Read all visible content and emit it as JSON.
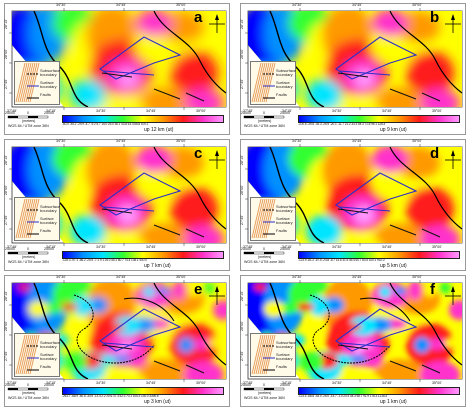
{
  "panels": [
    {
      "letter": "a",
      "ticks": "-60.0 -45.2 -29.9 -4.7 -9.2 5.7 15.0 25.0 36.1 43.8 53.4 66.8 100.1",
      "caption": "up 12 km (ut)"
    },
    {
      "letter": "b",
      "ticks": "-100.6 -39.6 -34.3 -26.9 -20.1 -11.7 21.2 33.3 54.3 71.8 95.1 128.4",
      "caption": "up 9 km (ut)"
    },
    {
      "letter": "c",
      "ticks": "-125.3 -97.1 -56.2 -25.9 -7.1 9.1 25.0 45.1 60.7 74.4 135.1 400.0",
      "caption": "up 7 km (ut)"
    },
    {
      "letter": "d",
      "ticks": "-123.9 -81.2 -57.5 -24.8 -6.7 14.6 31.5 45.4 60.7 83.5 100.1 910.0",
      "caption": "up 5 km (ut)"
    },
    {
      "letter": "e",
      "ticks": "-261.7 -88.9 -60.8 -34.9 -13.4 2.2 20.6 37.3 52.3 70.1 105.3 130.0 3396.6",
      "caption": "up 3 km (ut)"
    },
    {
      "letter": "f",
      "ticks": "-123.4 -68.8 -44.0 -26.0 -14.7 -1.0 20.4 44.3 58.7 91.9 176.3 1216.4",
      "caption": "up 1 km (ut)"
    }
  ],
  "legend": {
    "items": [
      {
        "label": "Subsurface boundary",
        "icon": "dashed-black-line"
      },
      {
        "label": "Surface boundary",
        "icon": "blue-line"
      },
      {
        "label": "Faults",
        "icon": "black-arrow-line"
      }
    ]
  },
  "coords": {
    "top": [
      "34°30'",
      "34°45'",
      "35°00'"
    ],
    "bottom": [
      "34°15'",
      "34°30'",
      "34°45'",
      "35°00'"
    ],
    "left": [
      "28°15'",
      "28°00'",
      "27°45'"
    ],
    "origin": "37°45'"
  },
  "scalebar": {
    "labels": [
      "25000",
      "0",
      "25000"
    ],
    "unit": "(meters)",
    "projection": "WGS 84 / UTM zone 36N"
  },
  "north": "N",
  "colors": {
    "low": "#0000ff",
    "mid": "#ffff00",
    "high": "#ff33cc",
    "subsurface": "#000000",
    "surface": "#2d2dc8"
  }
}
